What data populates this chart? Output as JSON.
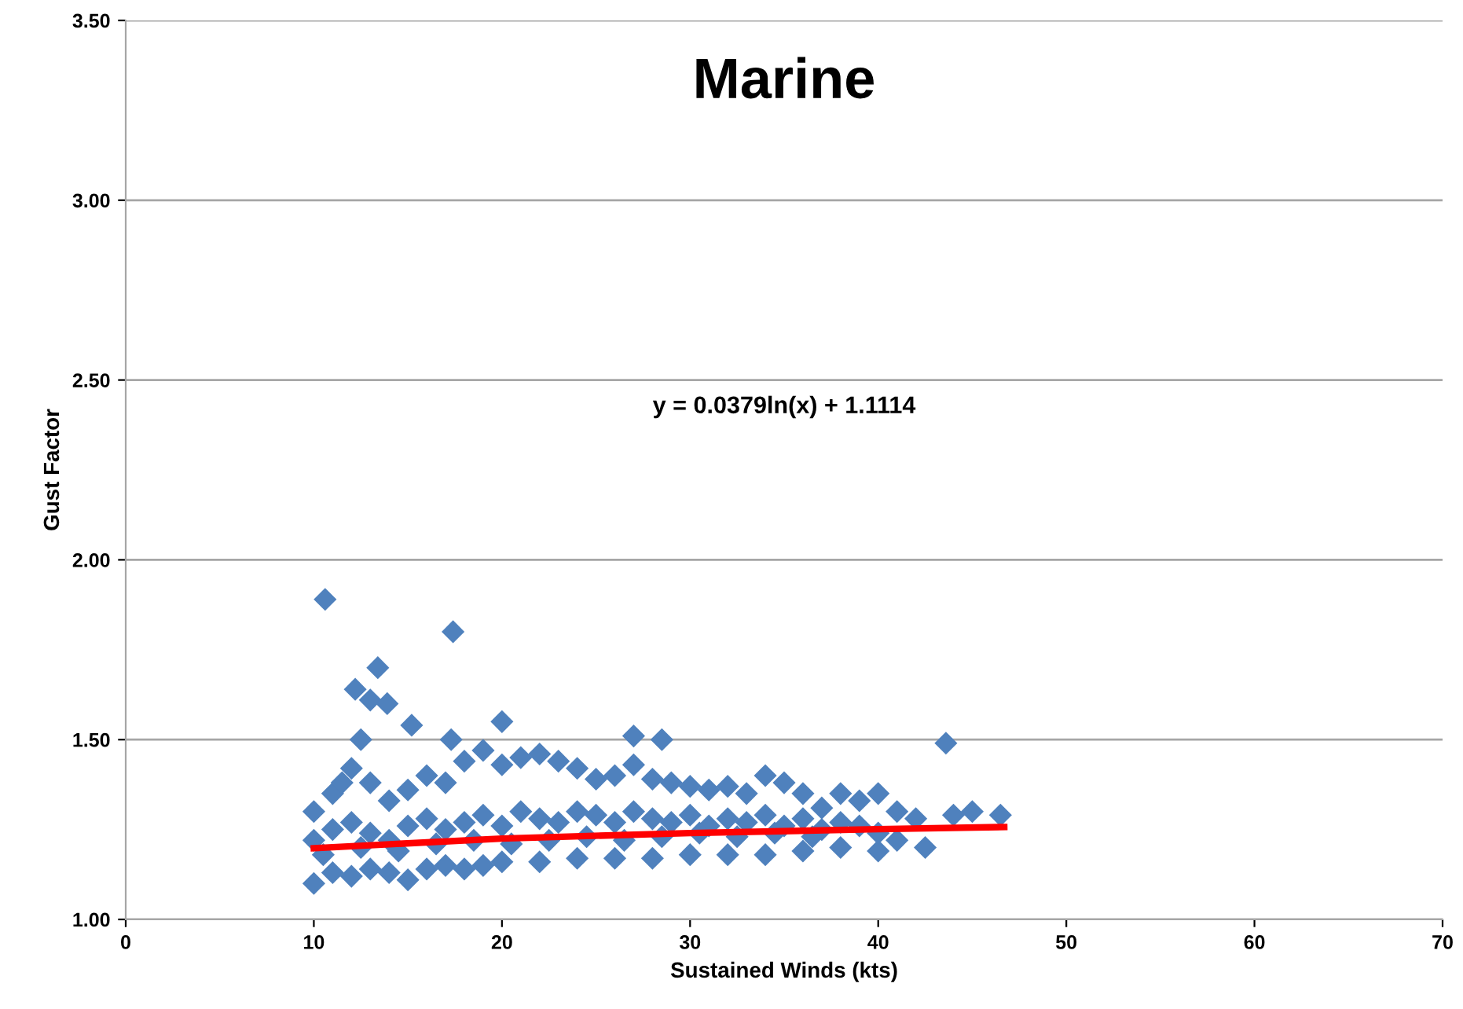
{
  "chart_data": {
    "type": "scatter",
    "title": "Marine",
    "xlabel": "Sustained Winds (kts)",
    "ylabel": "Gust Factor",
    "annotations": [
      "y = 0.0379ln(x) + 1.1114"
    ],
    "xlim": [
      0,
      70
    ],
    "xticks": [
      0,
      10,
      20,
      30,
      40,
      50,
      60,
      70
    ],
    "ylim": [
      1.0,
      3.5
    ],
    "yticks": [
      {
        "value": 1.0,
        "label": "1.00"
      },
      {
        "value": 1.5,
        "label": "1.50"
      },
      {
        "value": 2.0,
        "label": "2.00"
      },
      {
        "value": 2.5,
        "label": "2.50"
      },
      {
        "value": 3.0,
        "label": "3.00"
      },
      {
        "value": 3.5,
        "label": "3.50"
      }
    ],
    "grid": "y",
    "legend": false,
    "series": [
      {
        "color": "#4f81bd",
        "marker": "diamond",
        "x": [
          10.6,
          17.4,
          13.4,
          12.2,
          13.0,
          13.9,
          12.5,
          15.2,
          20.0,
          17.3,
          27.0,
          28.5,
          43.6,
          10.0,
          11.0,
          11.5,
          12.0,
          13.0,
          14.0,
          15.0,
          16.0,
          17.0,
          18.0,
          19.0,
          20.0,
          21.0,
          22.0,
          23.0,
          24.0,
          25.0,
          26.0,
          27.0,
          28.0,
          29.0,
          30.0,
          31.0,
          32.0,
          33.0,
          34.0,
          35.0,
          36.0,
          37.0,
          38.0,
          39.0,
          40.0,
          41.0,
          42.0,
          44.0,
          45.0,
          46.5,
          10.0,
          11.0,
          12.0,
          13.0,
          14.0,
          15.0,
          16.0,
          17.0,
          18.0,
          19.0,
          20.0,
          22.0,
          24.0,
          26.0,
          28.0,
          30.0,
          32.0,
          34.0,
          36.0,
          38.0,
          40.0,
          41.0,
          42.5,
          10.0,
          11.0,
          12.0,
          13.0,
          14.0,
          15.0,
          16.0,
          17.0,
          18.0,
          19.0,
          20.0,
          21.0,
          22.0,
          23.0,
          24.0,
          25.0,
          26.0,
          27.0,
          28.0,
          29.0,
          30.0,
          31.0,
          32.0,
          33.0,
          34.0,
          35.0,
          36.0,
          37.0,
          38.0,
          39.0,
          40.0,
          10.5,
          12.5,
          14.5,
          16.5,
          18.5,
          20.5,
          22.5,
          24.5,
          26.5,
          28.5,
          30.5,
          32.5,
          34.5,
          36.5
        ],
        "values": [
          1.89,
          1.8,
          1.7,
          1.64,
          1.61,
          1.6,
          1.5,
          1.54,
          1.55,
          1.5,
          1.51,
          1.5,
          1.49,
          1.3,
          1.35,
          1.38,
          1.42,
          1.38,
          1.33,
          1.36,
          1.4,
          1.38,
          1.44,
          1.47,
          1.43,
          1.45,
          1.46,
          1.44,
          1.42,
          1.39,
          1.4,
          1.43,
          1.39,
          1.38,
          1.37,
          1.36,
          1.37,
          1.35,
          1.4,
          1.38,
          1.35,
          1.31,
          1.35,
          1.33,
          1.35,
          1.3,
          1.28,
          1.29,
          1.3,
          1.29,
          1.1,
          1.13,
          1.12,
          1.14,
          1.13,
          1.11,
          1.14,
          1.15,
          1.14,
          1.15,
          1.16,
          1.16,
          1.17,
          1.17,
          1.17,
          1.18,
          1.18,
          1.18,
          1.19,
          1.2,
          1.19,
          1.22,
          1.2,
          1.22,
          1.25,
          1.27,
          1.24,
          1.22,
          1.26,
          1.28,
          1.25,
          1.27,
          1.29,
          1.26,
          1.3,
          1.28,
          1.27,
          1.3,
          1.29,
          1.27,
          1.3,
          1.28,
          1.27,
          1.29,
          1.26,
          1.28,
          1.27,
          1.29,
          1.26,
          1.28,
          1.25,
          1.27,
          1.26,
          1.24,
          1.18,
          1.2,
          1.19,
          1.21,
          1.22,
          1.21,
          1.22,
          1.23,
          1.22,
          1.23,
          1.24,
          1.23,
          1.24,
          1.23
        ]
      },
      {
        "type": "line",
        "color": "#ff0000",
        "marker": "none",
        "line_style": "solid",
        "x": [
          10.0,
          20.0,
          30.0,
          40.0,
          46.7
        ],
        "values": [
          1.198,
          1.225,
          1.24,
          1.251,
          1.257
        ]
      }
    ]
  }
}
